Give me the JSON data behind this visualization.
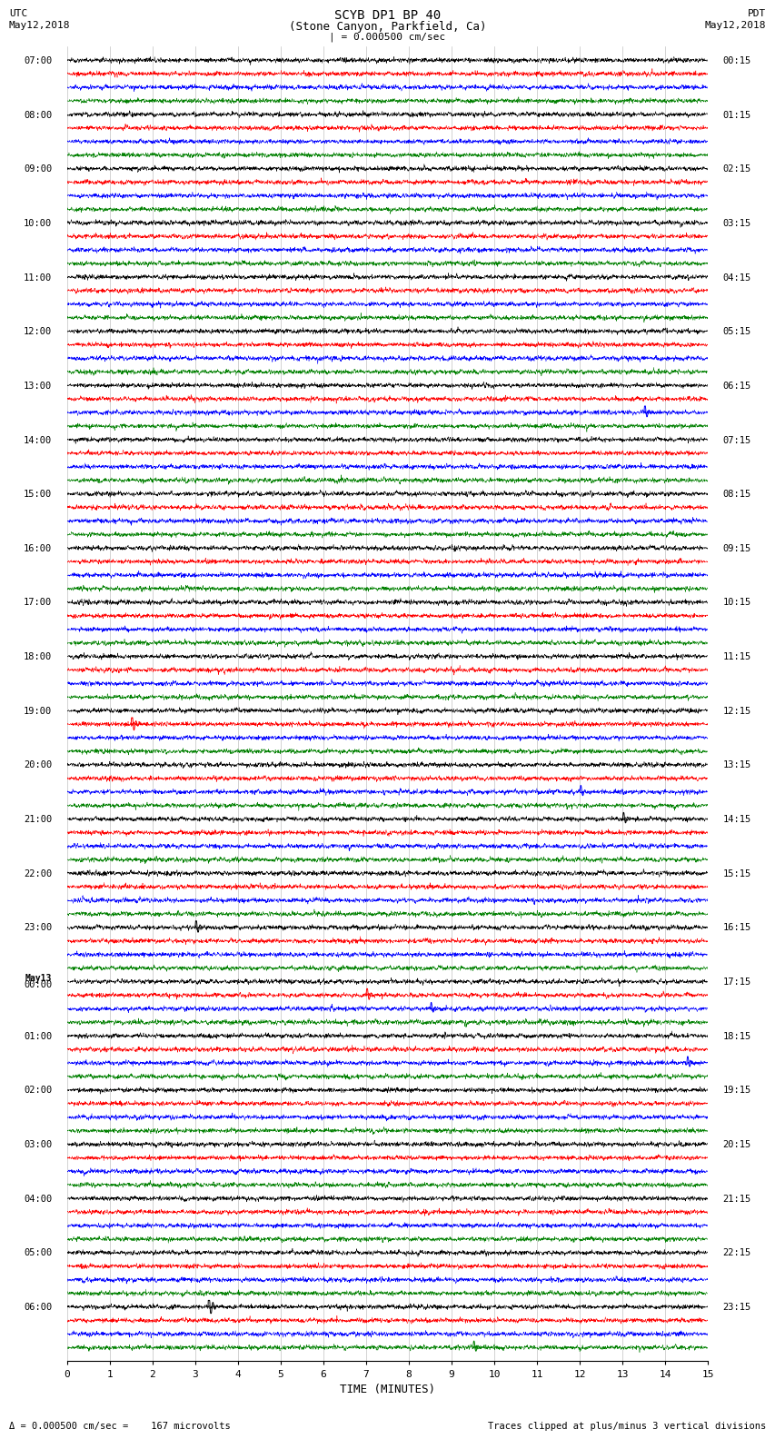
{
  "title_line1": "SCYB DP1 BP 40",
  "title_line2": "(Stone Canyon, Parkfield, Ca)",
  "title_line3": "| = 0.000500 cm/sec",
  "left_header_line1": "UTC",
  "left_header_line2": "May12,2018",
  "right_header_line1": "PDT",
  "right_header_line2": "May12,2018",
  "xlabel": "TIME (MINUTES)",
  "footer_left": "= 0.000500 cm/sec =    167 microvolts",
  "footer_right": "Traces clipped at plus/minus 3 vertical divisions",
  "time_minutes_min": 0,
  "time_minutes_max": 15,
  "time_ticks": [
    0,
    1,
    2,
    3,
    4,
    5,
    6,
    7,
    8,
    9,
    10,
    11,
    12,
    13,
    14,
    15
  ],
  "utc_labels": [
    "07:00",
    "08:00",
    "09:00",
    "10:00",
    "11:00",
    "12:00",
    "13:00",
    "14:00",
    "15:00",
    "16:00",
    "17:00",
    "18:00",
    "19:00",
    "20:00",
    "21:00",
    "22:00",
    "23:00",
    "May13\n00:00",
    "01:00",
    "02:00",
    "03:00",
    "04:00",
    "05:00",
    "06:00"
  ],
  "pdt_labels": [
    "00:15",
    "01:15",
    "02:15",
    "03:15",
    "04:15",
    "05:15",
    "06:15",
    "07:15",
    "08:15",
    "09:15",
    "10:15",
    "11:15",
    "12:15",
    "13:15",
    "14:15",
    "15:15",
    "16:15",
    "17:15",
    "18:15",
    "19:15",
    "20:15",
    "21:15",
    "22:15",
    "23:15"
  ],
  "n_hours": 24,
  "n_traces_per_hour": 4,
  "colors": [
    "black",
    "red",
    "blue",
    "green"
  ],
  "background_color": "white",
  "trace_amplitude": 0.38,
  "noise_base": 0.18,
  "special_events": [
    {
      "hour_idx": 12,
      "trace": 1,
      "minute": 1.5,
      "amplitude": 2.5,
      "color": "red"
    },
    {
      "hour_idx": 6,
      "trace": 2,
      "minute": 13.5,
      "amplitude": 1.8,
      "color": "blue"
    },
    {
      "hour_idx": 16,
      "trace": 0,
      "minute": 3.0,
      "amplitude": 2.0,
      "color": "black"
    },
    {
      "hour_idx": 13,
      "trace": 2,
      "minute": 12.0,
      "amplitude": 1.5,
      "color": "blue"
    },
    {
      "hour_idx": 17,
      "trace": 1,
      "minute": 7.0,
      "amplitude": 1.8,
      "color": "red"
    },
    {
      "hour_idx": 14,
      "trace": 0,
      "minute": 13.0,
      "amplitude": 1.6,
      "color": "black"
    },
    {
      "hour_idx": 17,
      "trace": 2,
      "minute": 8.5,
      "amplitude": 1.4,
      "color": "blue"
    },
    {
      "hour_idx": 23,
      "trace": 0,
      "minute": 3.3,
      "amplitude": 3.5,
      "color": "black"
    },
    {
      "hour_idx": 23,
      "trace": 3,
      "minute": 9.5,
      "amplitude": 1.5,
      "color": "green"
    },
    {
      "hour_idx": 18,
      "trace": 2,
      "minute": 14.5,
      "amplitude": 1.5,
      "color": "blue"
    }
  ]
}
